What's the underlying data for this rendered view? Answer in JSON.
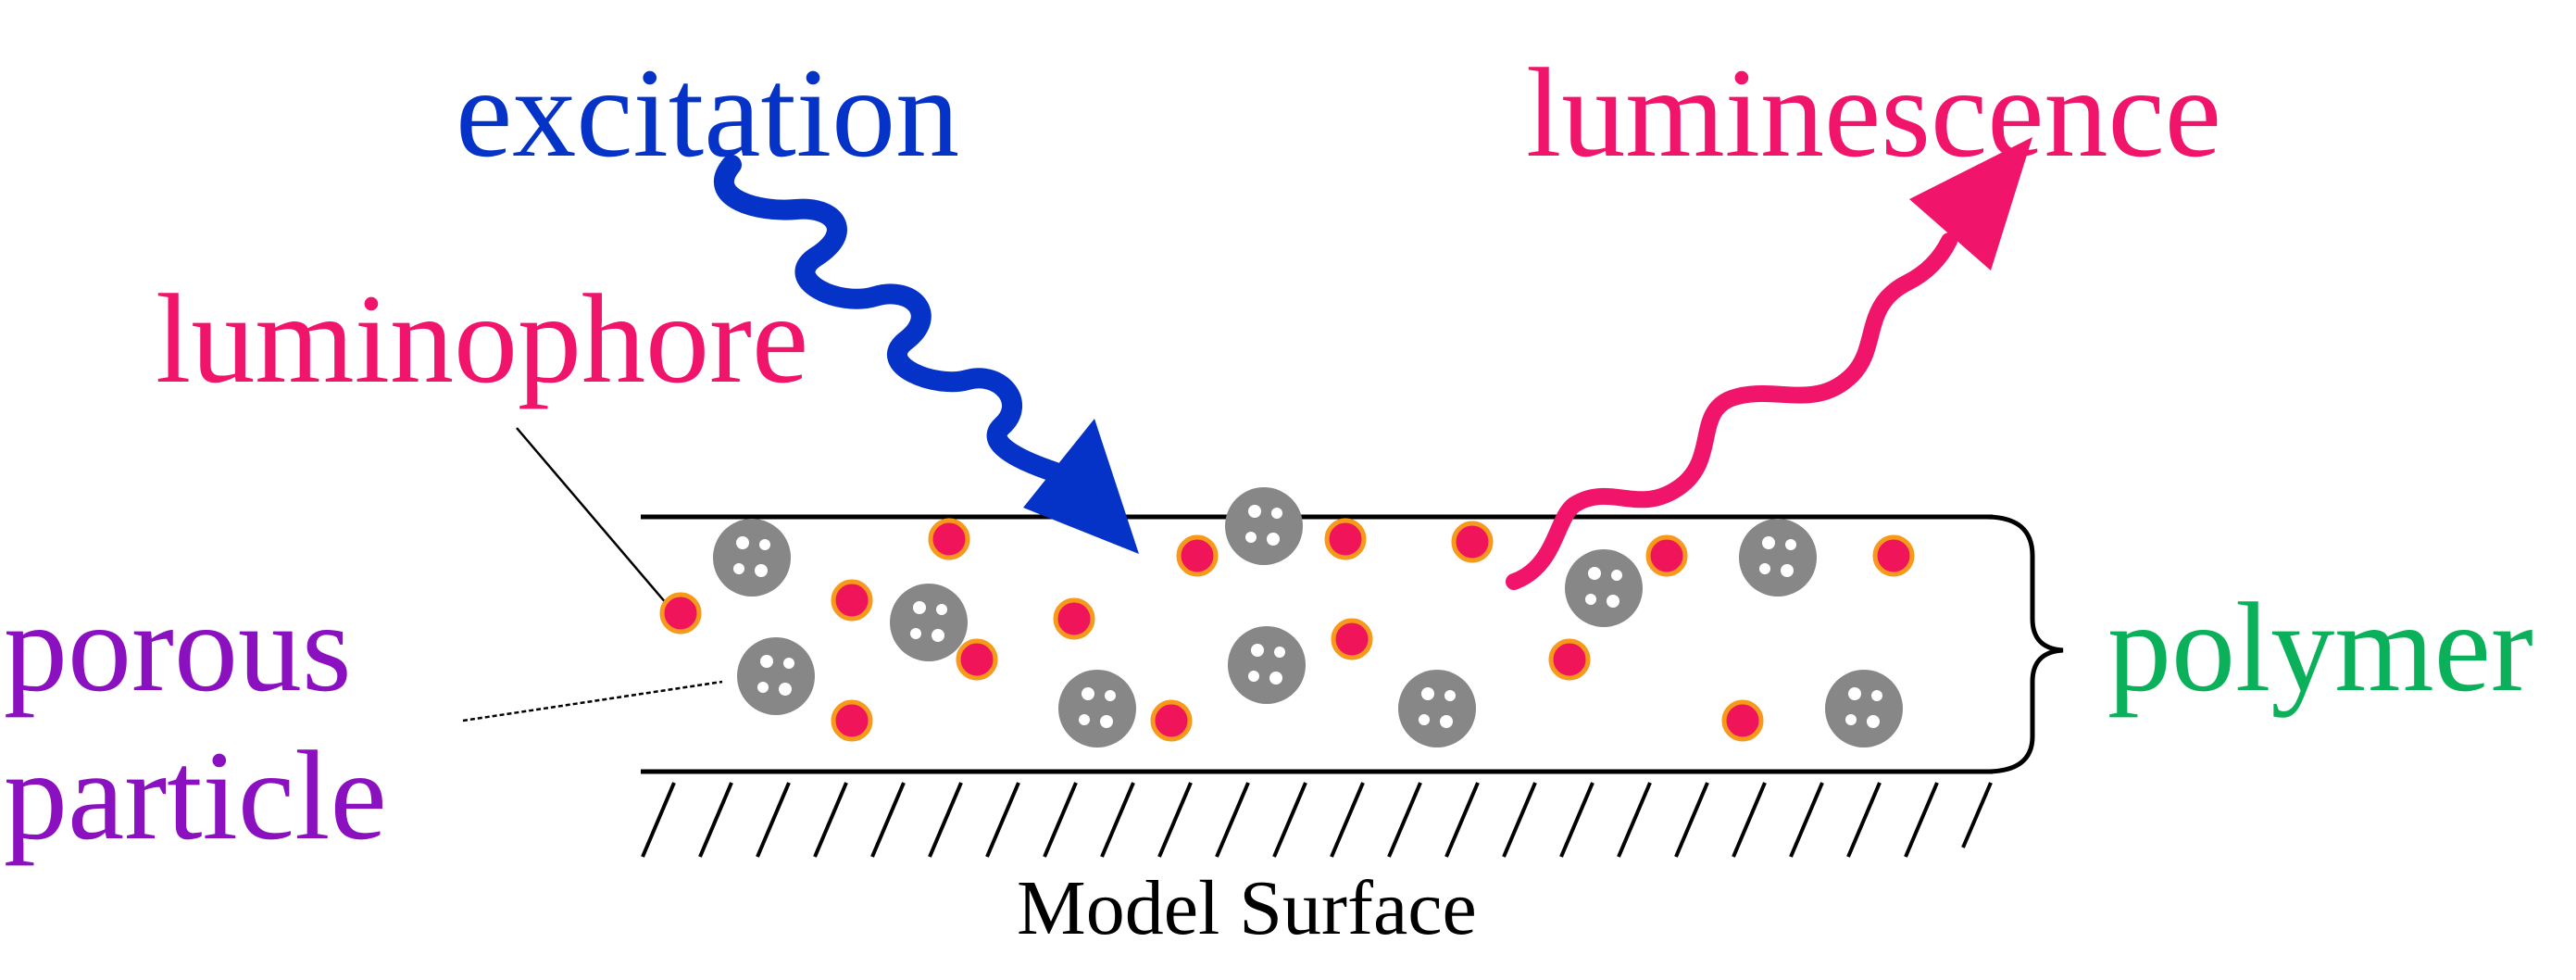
{
  "labels": {
    "excitation": "excitation",
    "luminescence": "luminescence",
    "luminophore": "luminophore",
    "porous_line1": "porous",
    "porous_line2": "particle",
    "polymer": "polymer",
    "surface": "Model Surface"
  },
  "colors": {
    "excitation": "#0533c8",
    "luminescence": "#f0146a",
    "luminophore_label": "#f0146a",
    "porous_label": "#8a10c0",
    "polymer_label": "#0bb05a",
    "dot_fill": "#f0145a",
    "dot_ring": "#f79a1c",
    "particle": "#868686",
    "line": "#000000"
  },
  "icons": {
    "excitation_arrow": "wavy-arrow-down-right",
    "luminescence_arrow": "wavy-arrow-up-right",
    "luminophore": "red-dot",
    "porous_particle": "grey-sphere-with-pores",
    "polymer": "curly-brace",
    "surface": "hatched-ground"
  }
}
